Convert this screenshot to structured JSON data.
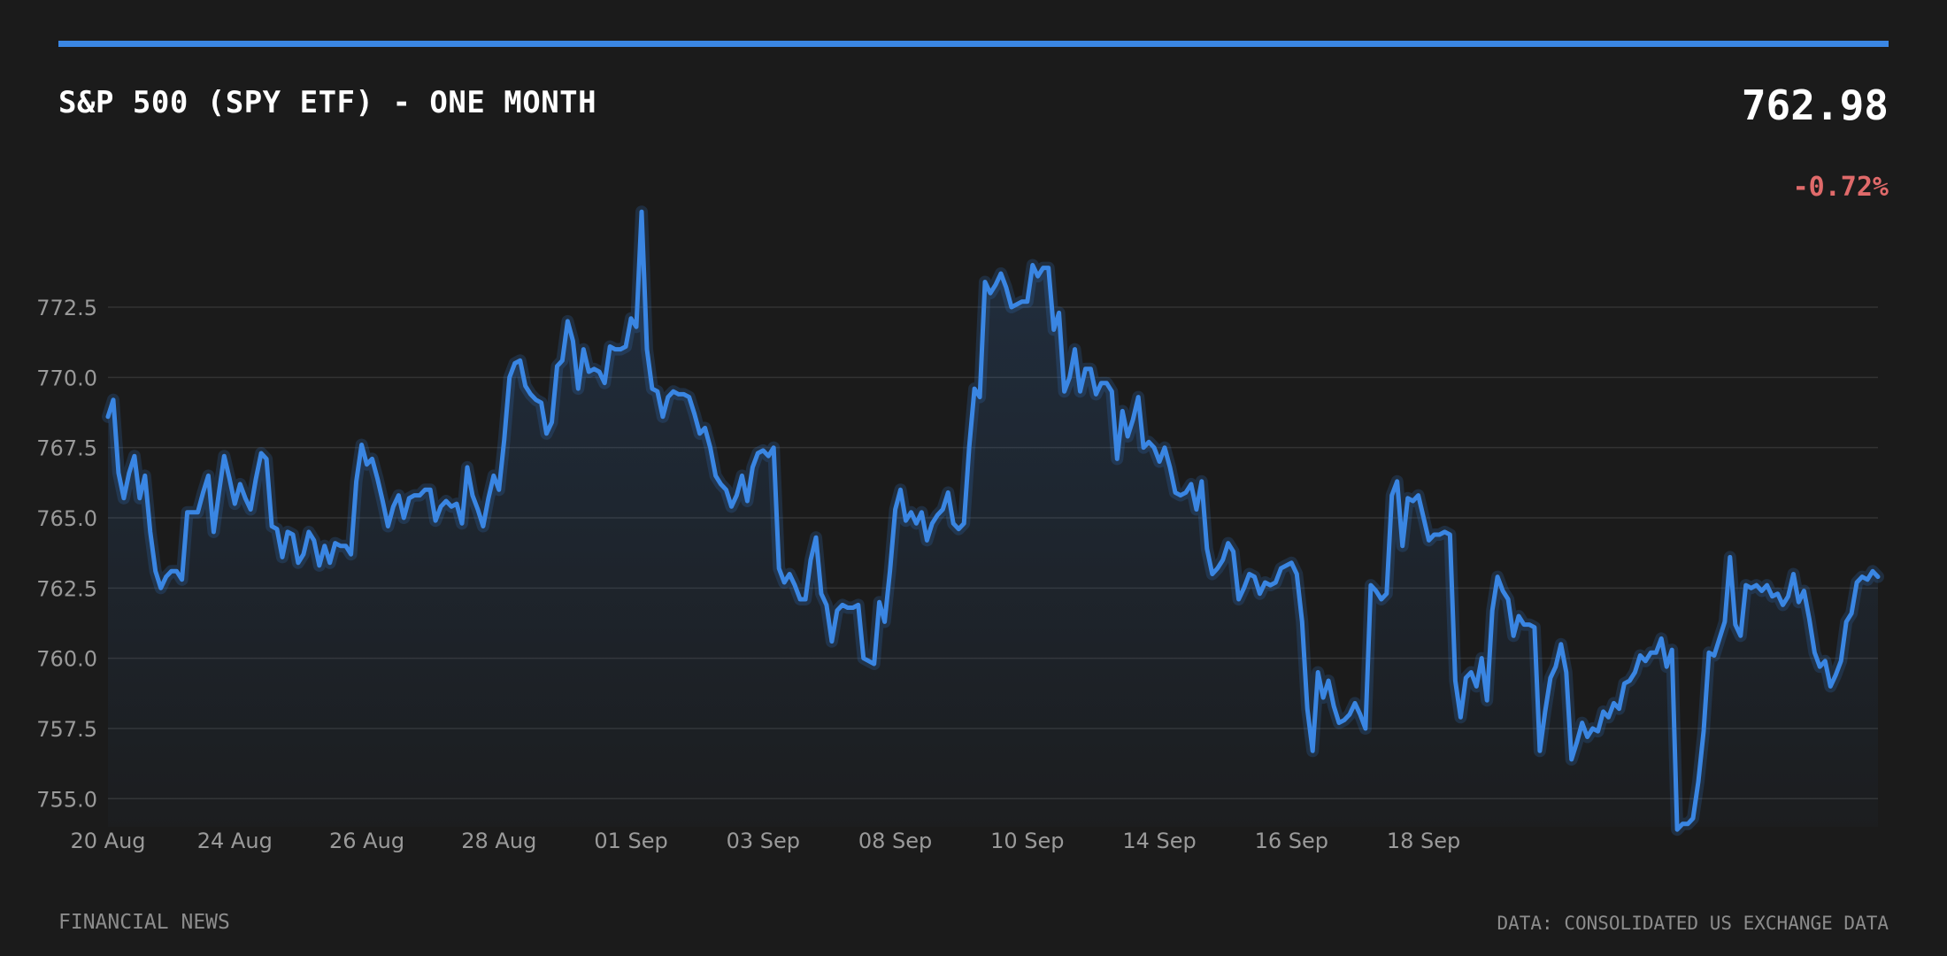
{
  "header": {
    "title": "S&P 500 (SPY ETF) - ONE MONTH",
    "price": "762.98",
    "change": "-0.72%"
  },
  "footer": {
    "source_left": "FINANCIAL NEWS",
    "source_right": "DATA: CONSOLIDATED US EXCHANGE DATA"
  },
  "colors": {
    "background": "#1b1b1b",
    "accent": "#3a86e3",
    "negative": "#e06a6a",
    "grid": "#333333",
    "tick_text": "#9a9a9a"
  },
  "chart_data": {
    "type": "area",
    "title": "S&P 500 (SPY ETF) - ONE MONTH",
    "xlabel": "",
    "ylabel": "",
    "grid": true,
    "legend": "none",
    "ylim": [
      754.0,
      776.0
    ],
    "y_ticks": [
      755.0,
      757.5,
      760.0,
      762.5,
      765.0,
      767.5,
      770.0,
      772.5
    ],
    "y_tick_labels": [
      "755.0",
      "757.5",
      "760.0",
      "762.5",
      "765.0",
      "767.5",
      "770.0",
      "772.5"
    ],
    "x_tick_labels": [
      "20 Aug",
      "24 Aug",
      "26 Aug",
      "28 Aug",
      "01 Sep",
      "03 Sep",
      "08 Sep",
      "10 Sep",
      "14 Sep",
      "16 Sep",
      "18 Sep"
    ],
    "x_tick_positions": [
      0,
      24,
      49,
      74,
      99,
      124,
      149,
      174,
      199,
      224,
      249
    ],
    "series": [
      {
        "values": [
          768.6,
          769.2,
          766.6,
          765.7,
          766.6,
          767.2,
          765.7,
          766.5,
          764.5,
          763.1,
          762.5,
          762.9,
          763.1,
          763.1,
          762.8,
          765.2,
          765.2,
          765.2,
          765.9,
          766.5,
          764.5,
          765.9,
          767.2,
          766.4,
          765.5,
          766.2,
          765.7,
          765.3,
          766.4,
          767.3,
          767.1,
          764.7,
          764.6,
          763.6,
          764.5,
          764.4,
          763.4,
          763.7,
          764.5,
          764.2,
          763.3,
          764.0,
          763.4,
          764.1,
          764.0,
          764.0,
          763.7,
          766.3,
          767.6,
          766.9,
          767.1,
          766.4,
          765.6,
          764.7,
          765.4,
          765.8,
          765.0,
          765.7,
          765.8,
          765.8,
          766.0,
          766.0,
          764.9,
          765.4,
          765.6,
          765.4,
          765.5,
          764.8,
          766.8,
          765.8,
          765.3,
          764.7,
          765.7,
          766.5,
          766.0,
          767.8,
          770.0,
          770.5,
          770.6,
          769.7,
          769.4,
          769.2,
          769.1,
          768.0,
          768.4,
          770.4,
          770.6,
          772.0,
          771.3,
          769.6,
          771.0,
          770.2,
          770.3,
          770.2,
          769.8,
          771.1,
          771.0,
          771.0,
          771.1,
          772.1,
          771.8,
          775.9,
          771.0,
          769.6,
          769.5,
          768.6,
          769.3,
          769.5,
          769.4,
          769.4,
          769.3,
          768.7,
          768.0,
          768.2,
          767.5,
          766.5,
          766.2,
          766.0,
          765.4,
          765.8,
          766.5,
          765.6,
          766.8,
          767.3,
          767.4,
          767.2,
          767.5,
          763.2,
          762.7,
          763.0,
          762.6,
          762.1,
          762.1,
          763.5,
          764.3,
          762.3,
          761.9,
          760.6,
          761.7,
          761.9,
          761.8,
          761.8,
          761.9,
          760.0,
          759.9,
          759.8,
          762.0,
          761.3,
          763.1,
          765.3,
          766.0,
          764.9,
          765.2,
          764.8,
          765.2,
          764.2,
          764.8,
          765.1,
          765.3,
          765.9,
          764.8,
          764.6,
          764.8,
          767.5,
          769.6,
          769.3,
          773.4,
          773.0,
          773.3,
          773.7,
          773.2,
          772.5,
          772.6,
          772.7,
          772.7,
          774.0,
          773.6,
          773.9,
          773.9,
          771.7,
          772.3,
          769.5,
          770.0,
          771.0,
          769.5,
          770.3,
          770.3,
          769.4,
          769.8,
          769.8,
          769.5,
          767.1,
          768.8,
          767.9,
          768.5,
          769.3,
          767.5,
          767.7,
          767.5,
          767.0,
          767.5,
          766.8,
          765.9,
          765.8,
          765.9,
          766.2,
          765.3,
          766.3,
          763.9,
          763.0,
          763.2,
          763.5,
          764.1,
          763.8,
          762.1,
          762.5,
          763.0,
          762.9,
          762.3,
          762.7,
          762.6,
          762.7,
          763.2,
          763.3,
          763.4,
          763.0,
          761.3,
          758.2,
          756.7,
          759.5,
          758.6,
          759.2,
          758.3,
          757.7,
          757.8,
          758.0,
          758.4,
          758.0,
          757.5,
          762.6,
          762.4,
          762.1,
          762.3,
          765.8,
          766.3,
          764.0,
          765.7,
          765.6,
          765.8,
          765.0,
          764.2,
          764.4,
          764.4,
          764.5,
          764.4,
          759.2,
          757.9,
          759.3,
          759.5,
          759.0,
          760.0,
          758.5,
          761.7,
          762.9,
          762.4,
          762.1,
          760.8,
          761.5,
          761.2,
          761.2,
          761.1,
          756.7,
          758.1,
          759.3,
          759.7,
          760.5,
          759.5,
          756.4,
          757.0,
          757.7,
          757.2,
          757.5,
          757.4,
          758.1,
          757.9,
          758.4,
          758.2,
          759.1,
          759.2,
          759.5,
          760.1,
          759.9,
          760.2,
          760.2,
          760.7,
          759.7,
          760.3,
          753.9,
          754.1,
          754.1,
          754.3,
          755.6,
          757.4,
          760.2,
          760.1,
          760.7,
          761.3,
          763.6,
          761.2,
          760.8,
          762.6,
          762.5,
          762.6,
          762.4,
          762.6,
          762.2,
          762.3,
          761.9,
          762.2,
          763.0,
          762.0,
          762.4,
          761.4,
          760.2,
          759.7,
          759.9,
          759.0,
          759.4,
          759.9,
          761.3,
          761.6,
          762.7,
          762.9,
          762.8,
          763.1,
          762.9
        ]
      }
    ]
  }
}
